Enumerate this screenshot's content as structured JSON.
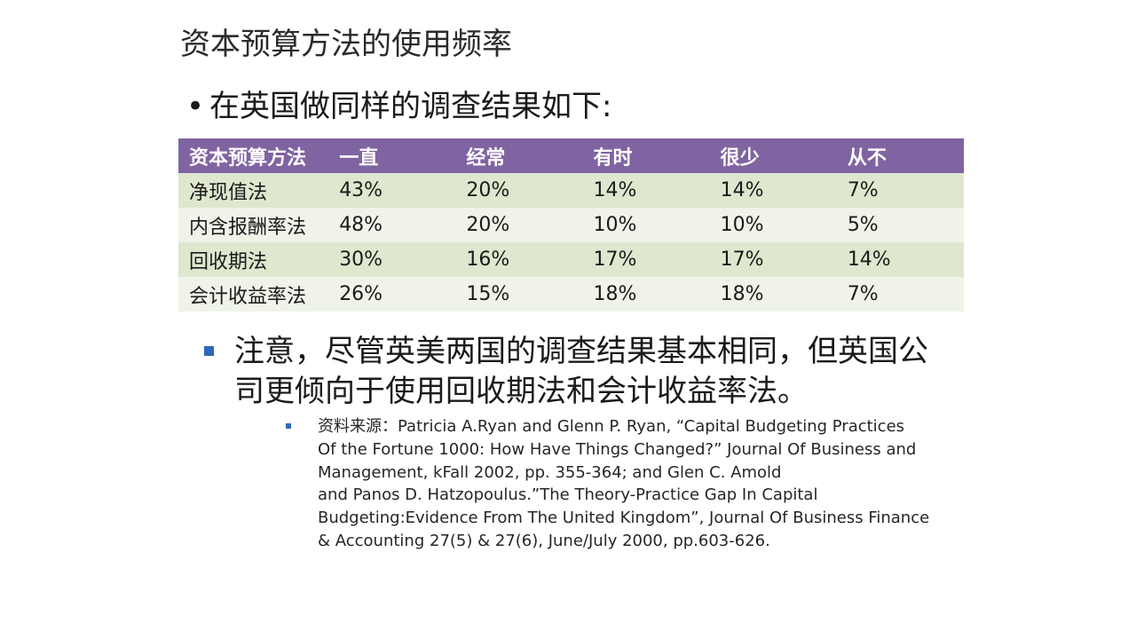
{
  "slide": {
    "title": "资本预算方法的使用频率",
    "bullet": "在英国做同样的调查结果如下:",
    "bullet_marker": "•"
  },
  "table": {
    "headers": [
      "资本预算方法",
      "一直",
      "经常",
      "有时",
      "很少",
      "从不"
    ],
    "rows": [
      [
        "净现值法",
        "43%",
        "20%",
        "14%",
        "14%",
        "7%"
      ],
      [
        "内含报酬率法",
        "48%",
        "20%",
        "10%",
        "10%",
        "5%"
      ],
      [
        "回收期法",
        "30%",
        "16%",
        "17%",
        "17%",
        "14%"
      ],
      [
        "会计收益率法",
        "26%",
        "15%",
        "18%",
        "18%",
        "7%"
      ]
    ],
    "header_color": "#8064a2",
    "row_colors": [
      "#dfe7cf",
      "#eff3e8"
    ]
  },
  "note": {
    "text": "注意，尽管英美两国的调查结果基本相同，但英国公司更倾向于使用回收期法和会计收益率法。"
  },
  "source": {
    "lines": [
      "资料来源：Patricia A.Ryan and Glenn P. Ryan, “Capital Budgeting Practices",
      "Of the Fortune 1000: How Have Things Changed?” Journal Of Business and",
      "Management, kFall 2002, pp. 355-364; and Glen C. Amold",
      "and Panos D. Hatzopoulus.”The  Theory-Practice Gap In Capital",
      "Budgeting:Evidence From The United Kingdom”, Journal Of Business Finance",
      "& Accounting 27(5) & 27(6), June/July 2000, pp.603-626."
    ]
  }
}
